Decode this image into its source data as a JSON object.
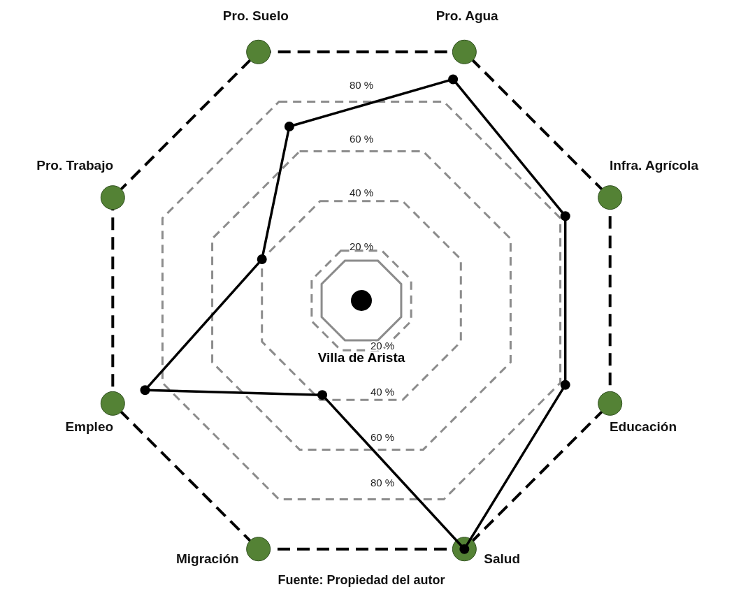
{
  "chart_data": {
    "type": "radar",
    "categories": [
      "Pro. Suelo",
      "Pro. Agua",
      "Infra. Agrícola",
      "Educación",
      "Salud",
      "Migración",
      "Empleo",
      "Pro. Trabajo"
    ],
    "series": [
      {
        "name": "Villa de Arista",
        "color": "#000000",
        "values": [
          70,
          89,
          82,
          82,
          100,
          38,
          87,
          40
        ]
      }
    ],
    "ylim": [
      0,
      100
    ],
    "yticks": [
      {
        "value": 20,
        "label": "20 %"
      },
      {
        "value": 40,
        "label": "40 %"
      },
      {
        "value": 60,
        "label": "60 %"
      },
      {
        "value": 80,
        "label": "80 %"
      }
    ],
    "grid": true,
    "marker": "circle",
    "line_style": "solid",
    "annotations": [
      "Fuente: Propiedad del autor"
    ]
  }
}
